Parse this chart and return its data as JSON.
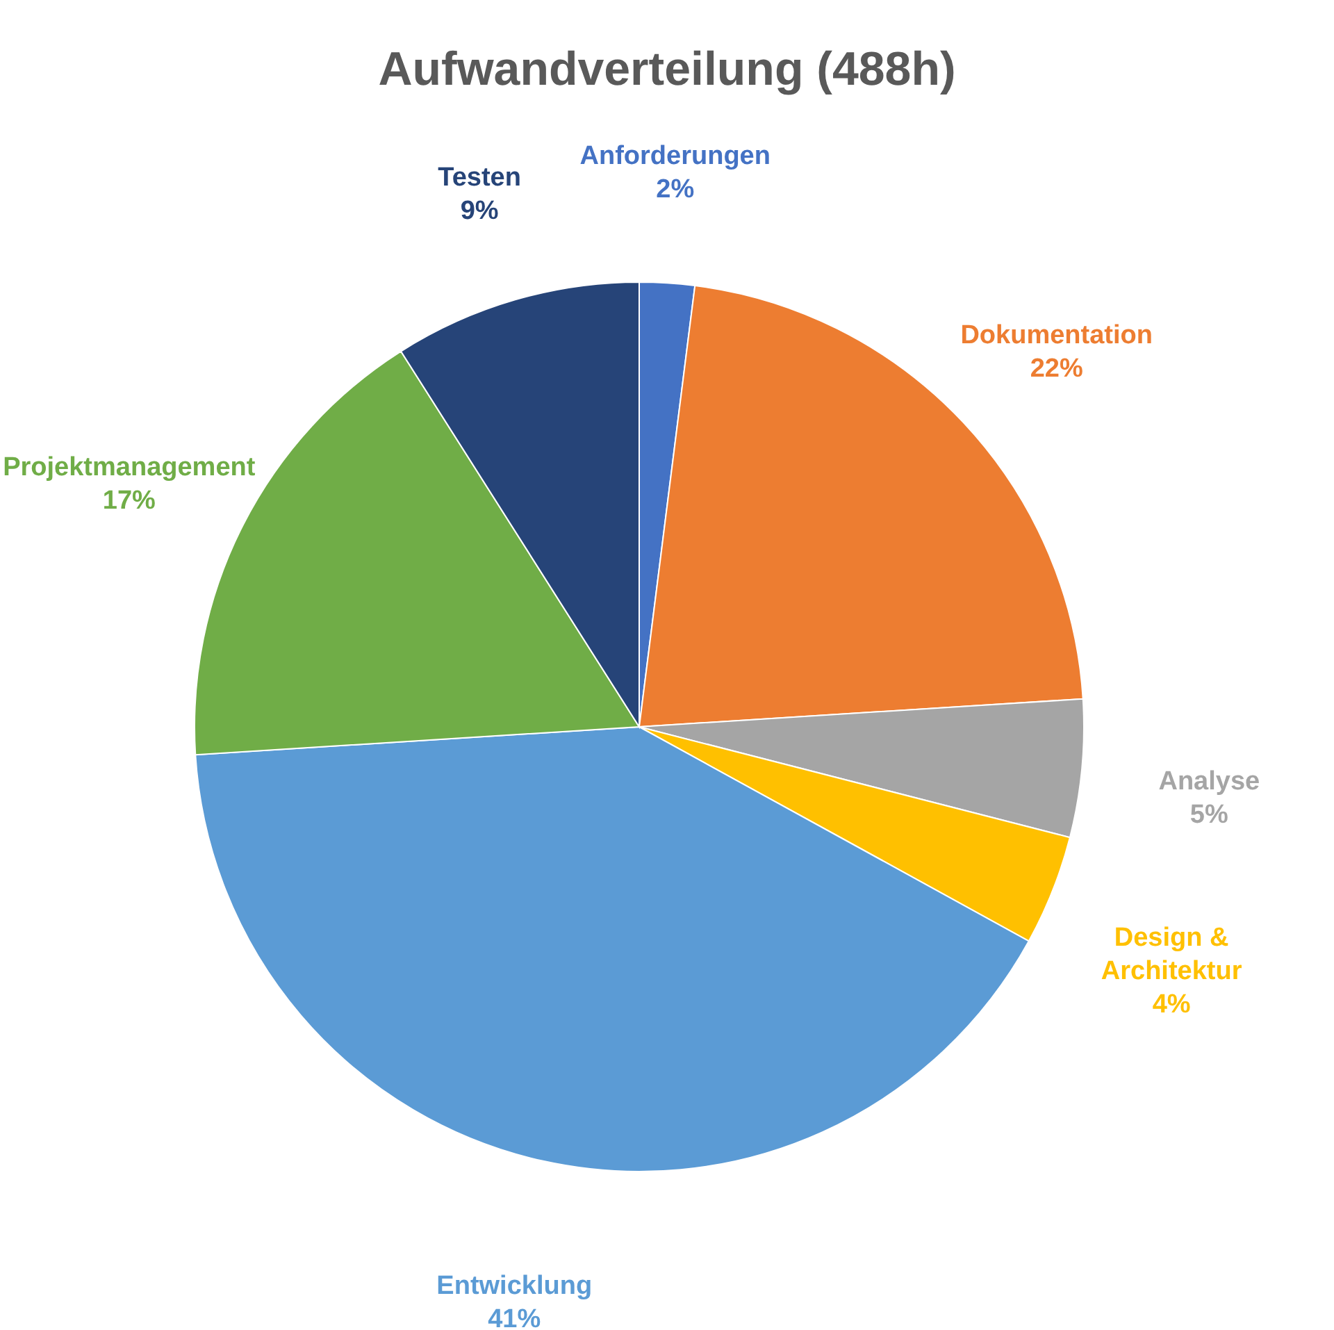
{
  "chart_data": {
    "type": "pie",
    "title": "Aufwandverteilung (488h)",
    "categories": [
      "Anforderungen",
      "Dokumentation",
      "Analyse",
      "Design & Architektur",
      "Entwicklung",
      "Projektmanagement",
      "Testen"
    ],
    "values": [
      2,
      22,
      5,
      4,
      41,
      17,
      9
    ],
    "colors": [
      "#4472c4",
      "#ed7d31",
      "#a5a5a5",
      "#ffc000",
      "#5b9bd5",
      "#70ad47",
      "#264478"
    ],
    "value_labels": [
      "2%",
      "22%",
      "5%",
      "4%",
      "41%",
      "17%",
      "9%"
    ],
    "legend": false
  }
}
